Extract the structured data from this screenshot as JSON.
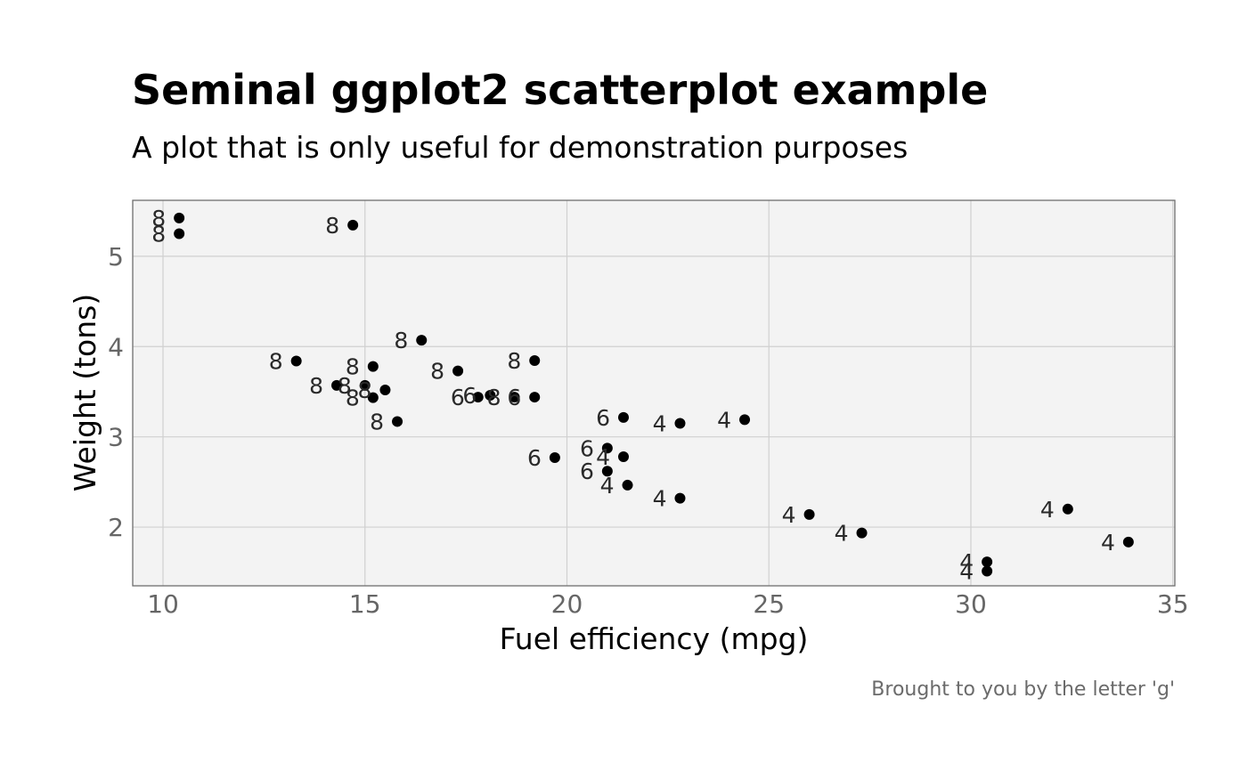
{
  "chart_data": {
    "type": "scatter",
    "title": "Seminal ggplot2 scatterplot example",
    "subtitle": "A plot that is only useful for demonstration purposes",
    "xlabel": "Fuel efficiency (mpg)",
    "ylabel": "Weight (tons)",
    "caption": "Brought to you by the letter 'g'",
    "xlim": [
      9.25,
      35.05
    ],
    "ylim": [
      1.35,
      5.62
    ],
    "xticks": [
      10,
      15,
      20,
      25,
      30,
      35
    ],
    "yticks": [
      2,
      3,
      4,
      5
    ],
    "grid": true,
    "point_color": "#000000",
    "panel_color": "#f3f3f3",
    "points": [
      {
        "x": 21.0,
        "y": 2.62,
        "label": "6"
      },
      {
        "x": 21.0,
        "y": 2.875,
        "label": "6"
      },
      {
        "x": 22.8,
        "y": 2.32,
        "label": "4"
      },
      {
        "x": 21.4,
        "y": 3.215,
        "label": "6"
      },
      {
        "x": 18.7,
        "y": 3.44,
        "label": "8"
      },
      {
        "x": 18.1,
        "y": 3.46,
        "label": "6"
      },
      {
        "x": 14.3,
        "y": 3.57,
        "label": "8"
      },
      {
        "x": 24.4,
        "y": 3.19,
        "label": "4"
      },
      {
        "x": 22.8,
        "y": 3.15,
        "label": "4"
      },
      {
        "x": 19.2,
        "y": 3.44,
        "label": "6"
      },
      {
        "x": 17.8,
        "y": 3.44,
        "label": "6"
      },
      {
        "x": 16.4,
        "y": 4.07,
        "label": "8"
      },
      {
        "x": 17.3,
        "y": 3.73,
        "label": "8"
      },
      {
        "x": 15.2,
        "y": 3.78,
        "label": "8"
      },
      {
        "x": 10.4,
        "y": 5.25,
        "label": "8"
      },
      {
        "x": 10.4,
        "y": 5.424,
        "label": "8"
      },
      {
        "x": 14.7,
        "y": 5.345,
        "label": "8"
      },
      {
        "x": 32.4,
        "y": 2.2,
        "label": "4"
      },
      {
        "x": 30.4,
        "y": 1.615,
        "label": "4"
      },
      {
        "x": 33.9,
        "y": 1.835,
        "label": "4"
      },
      {
        "x": 21.5,
        "y": 2.465,
        "label": "4"
      },
      {
        "x": 15.5,
        "y": 3.52,
        "label": "8"
      },
      {
        "x": 15.2,
        "y": 3.435,
        "label": "8"
      },
      {
        "x": 13.3,
        "y": 3.84,
        "label": "8"
      },
      {
        "x": 19.2,
        "y": 3.845,
        "label": "8"
      },
      {
        "x": 27.3,
        "y": 1.935,
        "label": "4"
      },
      {
        "x": 26.0,
        "y": 2.14,
        "label": "4"
      },
      {
        "x": 30.4,
        "y": 1.513,
        "label": "4"
      },
      {
        "x": 15.8,
        "y": 3.17,
        "label": "8"
      },
      {
        "x": 19.7,
        "y": 2.77,
        "label": "6"
      },
      {
        "x": 15.0,
        "y": 3.57,
        "label": "8"
      },
      {
        "x": 21.4,
        "y": 2.78,
        "label": "4"
      }
    ]
  }
}
